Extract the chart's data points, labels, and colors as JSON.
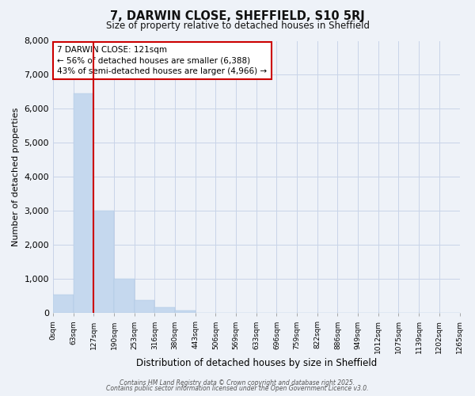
{
  "title": "7, DARWIN CLOSE, SHEFFIELD, S10 5RJ",
  "subtitle": "Size of property relative to detached houses in Sheffield",
  "xlabel": "Distribution of detached houses by size in Sheffield",
  "ylabel": "Number of detached properties",
  "bar_values": [
    550,
    6450,
    3000,
    1000,
    380,
    160,
    70,
    0,
    0,
    0,
    0,
    0,
    0,
    0,
    0,
    0,
    0,
    0,
    0,
    0
  ],
  "bin_labels": [
    "0sqm",
    "63sqm",
    "127sqm",
    "190sqm",
    "253sqm",
    "316sqm",
    "380sqm",
    "443sqm",
    "506sqm",
    "569sqm",
    "633sqm",
    "696sqm",
    "759sqm",
    "822sqm",
    "886sqm",
    "949sqm",
    "1012sqm",
    "1075sqm",
    "1139sqm",
    "1202sqm",
    "1265sqm"
  ],
  "bar_color": "#c5d8ee",
  "bar_edge_color": "#a8c4e0",
  "grid_color": "#c8d4e8",
  "bg_color": "#eef2f8",
  "vline_color": "#cc0000",
  "annotation_title": "7 DARWIN CLOSE: 121sqm",
  "annotation_line1": "← 56% of detached houses are smaller (6,388)",
  "annotation_line2": "43% of semi-detached houses are larger (4,966) →",
  "annotation_box_color": "#cc0000",
  "ylim": [
    0,
    8000
  ],
  "yticks": [
    0,
    1000,
    2000,
    3000,
    4000,
    5000,
    6000,
    7000,
    8000
  ],
  "footer1": "Contains HM Land Registry data © Crown copyright and database right 2025.",
  "footer2": "Contains public sector information licensed under the Open Government Licence v3.0.",
  "num_bins": 20,
  "property_sqm": 121,
  "bin_size": 63
}
